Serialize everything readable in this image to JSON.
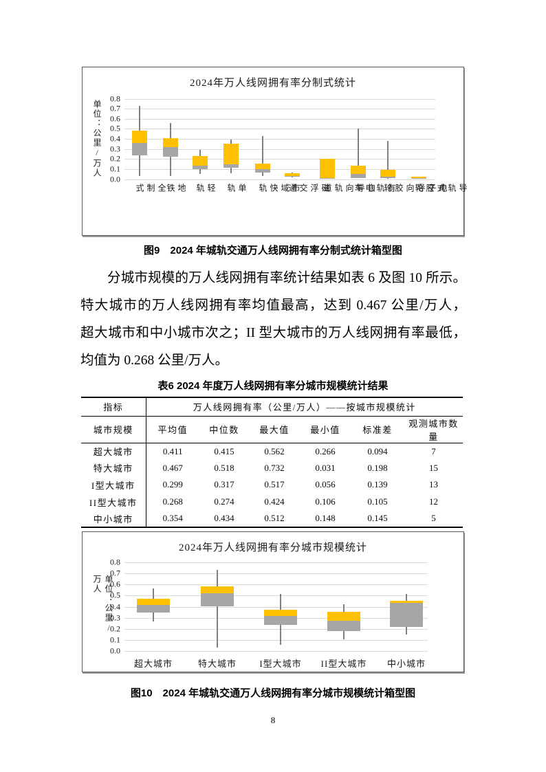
{
  "page": {
    "number": "8"
  },
  "figure9": {
    "caption": "图9　2024 年城轨交通万人线网拥有率分制式统计箱型图"
  },
  "figure10": {
    "caption": "图10　2024 年城轨交通万人线网拥有率分城市规模统计箱型图"
  },
  "paragraph": {
    "lines": [
      "分城市规模的万人线网拥有率统计结果如表 6 及图 10 所示。",
      "特大城市的万人线网拥有率均值最高，达到 0.467 公里/万人，",
      "超大城市和中小城市次之；II 型大城市的万人线网拥有率最低，",
      "均值为 0.268 公里/万人。"
    ]
  },
  "table6": {
    "title": "表6  2024 年度万人线网拥有率分城市规模统计结果",
    "header_row1": [
      "指标",
      "万人线网拥有率（公里/万人）——按城市规模统计"
    ],
    "header_row2": [
      "城市规模",
      "平均值",
      "中位数",
      "最大值",
      "最小值",
      "标准差",
      "观测城市数量"
    ],
    "rows": [
      [
        "超大城市",
        "0.411",
        "0.415",
        "0.562",
        "0.266",
        "0.094",
        "7"
      ],
      [
        "特大城市",
        "0.467",
        "0.518",
        "0.732",
        "0.031",
        "0.198",
        "15"
      ],
      [
        "I型大城市",
        "0.299",
        "0.317",
        "0.517",
        "0.056",
        "0.139",
        "13"
      ],
      [
        "II型大城市",
        "0.268",
        "0.274",
        "0.424",
        "0.106",
        "0.105",
        "12"
      ],
      [
        "中小城市",
        "0.354",
        "0.434",
        "0.512",
        "0.148",
        "0.145",
        "5"
      ]
    ]
  },
  "chart_data": [
    {
      "type": "boxplot",
      "title": "2024年万人线网拥有率分制式统计",
      "ylabel": "单位：公里/万人",
      "ylim": [
        0,
        0.8
      ],
      "ytick_step": 0.1,
      "grid": true,
      "legend": false,
      "box_colors": {
        "lower_q1_to_median": "#A6A6A6",
        "upper_median_to_q3": "#FFC000",
        "whisker": "#7F7F7F"
      },
      "categories": [
        "全制式",
        "地铁",
        "轻轨",
        "单轨",
        "市域快轨",
        "磁浮交通",
        "自导向轨道",
        "有轨电车",
        "电子导向胶轮",
        "导轨式胶轮"
      ],
      "boxes_low_q1_med_q3_high": [
        [
          0.03,
          0.235,
          0.36,
          0.48,
          0.73
        ],
        [
          0.03,
          0.22,
          0.32,
          0.41,
          0.56
        ],
        [
          0.05,
          0.1,
          0.13,
          0.23,
          0.29
        ],
        [
          0.06,
          0.115,
          0.145,
          0.355,
          0.39
        ],
        [
          0.03,
          0.065,
          0.1,
          0.155,
          0.43
        ],
        [
          0.02,
          0.022,
          0.032,
          0.055,
          0.065
        ],
        [
          0.005,
          0.005,
          0.012,
          0.2,
          0.2
        ],
        [
          0.01,
          0.012,
          0.05,
          0.135,
          0.505
        ],
        [
          0.005,
          0.007,
          0.027,
          0.095,
          0.38
        ],
        [
          0.008,
          0.008,
          0.013,
          0.024,
          0.024
        ]
      ]
    },
    {
      "type": "boxplot",
      "title": "2024年万人线网拥有率分城市规模统计",
      "ylabel": "单位：公里/万人",
      "ylim": [
        0,
        0.8
      ],
      "ytick_step": 0.1,
      "grid": true,
      "legend": false,
      "box_colors": {
        "lower_q1_to_median": "#A6A6A6",
        "upper_median_to_q3": "#FFC000",
        "whisker": "#7F7F7F"
      },
      "categories": [
        "超大城市",
        "特大城市",
        "I型大城市",
        "II型大城市",
        "中小城市"
      ],
      "boxes_low_q1_med_q3_high": [
        [
          0.266,
          0.35,
          0.415,
          0.47,
          0.562
        ],
        [
          0.031,
          0.405,
          0.518,
          0.585,
          0.732
        ],
        [
          0.056,
          0.235,
          0.317,
          0.37,
          0.517
        ],
        [
          0.106,
          0.18,
          0.27,
          0.355,
          0.424
        ],
        [
          0.148,
          0.215,
          0.434,
          0.455,
          0.512
        ]
      ]
    }
  ]
}
